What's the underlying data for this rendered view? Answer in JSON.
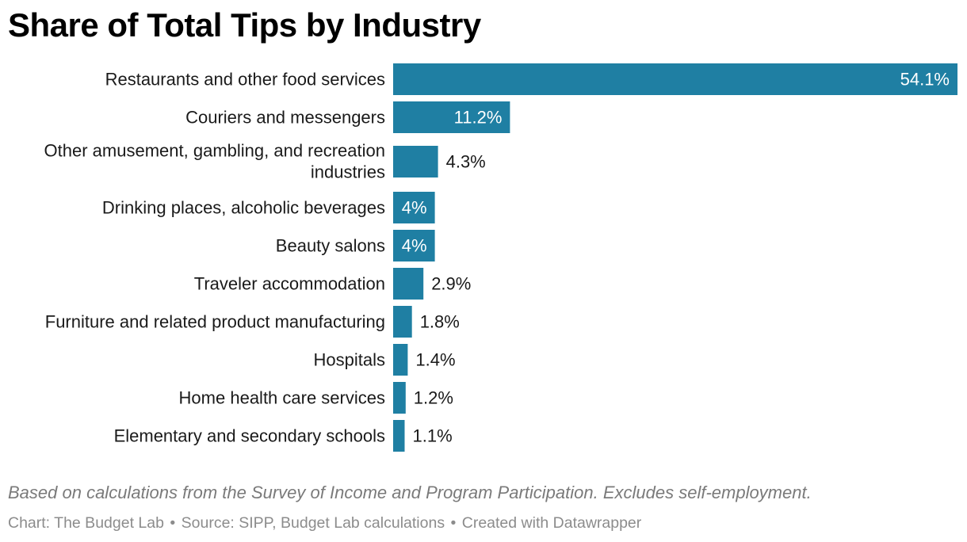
{
  "title": "Share of Total Tips by Industry",
  "notes": "Based on calculations from the Survey of Income and Program Participation. Excludes self-employment.",
  "footer": {
    "chart_credit": "Chart: The Budget Lab",
    "source": "Source: SIPP, Budget Lab calculations",
    "created_with": "Created with Datawrapper",
    "separator": "•"
  },
  "colors": {
    "bar": "#1f7fa3",
    "label_inside": "#ffffff",
    "label_outside": "#1a1a1a"
  },
  "chart_data": {
    "type": "bar",
    "orientation": "horizontal",
    "categories": [
      [
        "Restaurants and other food services"
      ],
      [
        "Couriers and messengers"
      ],
      [
        "Other amusement, gambling, and recreation",
        "industries"
      ],
      [
        "Drinking places, alcoholic beverages"
      ],
      [
        "Beauty salons"
      ],
      [
        "Traveler accommodation"
      ],
      [
        "Furniture and related product manufacturing"
      ],
      [
        "Hospitals"
      ],
      [
        "Home health care services"
      ],
      [
        "Elementary and secondary schools"
      ]
    ],
    "values": [
      54.1,
      11.2,
      4.3,
      4,
      4,
      2.9,
      1.8,
      1.4,
      1.2,
      1.1
    ],
    "value_labels": [
      "54.1%",
      "11.2%",
      "4.3%",
      "4%",
      "4%",
      "2.9%",
      "1.8%",
      "1.4%",
      "1.2%",
      "1.1%"
    ],
    "xlim": [
      0,
      54.1
    ],
    "grid": false,
    "legend": "none"
  }
}
